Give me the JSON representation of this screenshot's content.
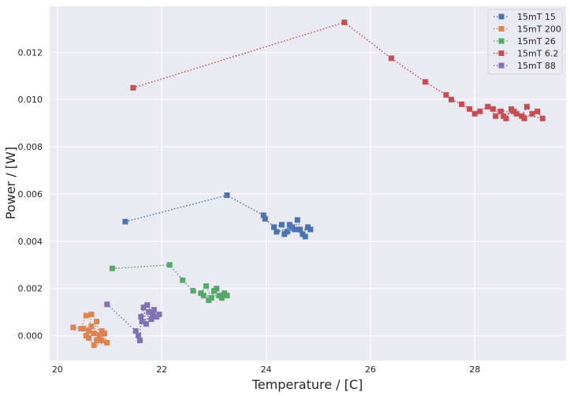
{
  "chart_data": {
    "type": "scatter",
    "xlabel": "Temperature / [C]",
    "ylabel": "Power / [W]",
    "xlim": [
      19.85,
      29.75
    ],
    "ylim": [
      -0.00105,
      0.01395
    ],
    "xticks": [
      20,
      22,
      24,
      26,
      28
    ],
    "yticks": [
      0.0,
      0.002,
      0.004,
      0.006,
      0.008,
      0.01,
      0.012
    ],
    "xtick_labels": [
      "20",
      "22",
      "24",
      "26",
      "28"
    ],
    "ytick_labels": [
      "0.000",
      "0.002",
      "0.004",
      "0.006",
      "0.008",
      "0.010",
      "0.012"
    ],
    "grid": true,
    "style": "seaborn-darkgrid",
    "marker": "square",
    "line_style": "dotted",
    "legend_position": "top-right",
    "series": [
      {
        "name": "15mT 15",
        "color": "#4c72b0",
        "points": [
          [
            21.3,
            0.00483
          ],
          [
            23.25,
            0.00595
          ],
          [
            23.95,
            0.0051
          ],
          [
            23.98,
            0.00495
          ],
          [
            24.15,
            0.0046
          ],
          [
            24.3,
            0.0047
          ],
          [
            24.4,
            0.0044
          ],
          [
            24.55,
            0.0045
          ],
          [
            24.6,
            0.0049
          ],
          [
            24.7,
            0.0043
          ],
          [
            24.8,
            0.0046
          ],
          [
            24.35,
            0.0043
          ],
          [
            24.45,
            0.0047
          ],
          [
            24.65,
            0.0045
          ],
          [
            24.75,
            0.0042
          ],
          [
            24.5,
            0.0046
          ],
          [
            24.2,
            0.0044
          ],
          [
            24.85,
            0.0045
          ]
        ]
      },
      {
        "name": "15mT 200",
        "color": "#dd8452",
        "points": [
          [
            20.3,
            0.00035
          ],
          [
            20.45,
            0.0003
          ],
          [
            20.55,
            0.00085
          ],
          [
            20.65,
            0.0009
          ],
          [
            20.6,
            0.0002
          ],
          [
            20.7,
            0.0001
          ],
          [
            20.75,
            0.0006
          ],
          [
            20.8,
            0.0
          ],
          [
            20.85,
            -0.0002
          ],
          [
            20.9,
            0.0001
          ],
          [
            20.95,
            -0.0003
          ],
          [
            20.7,
            -0.0004
          ],
          [
            20.6,
            -0.0001
          ],
          [
            20.5,
            0.0003
          ],
          [
            20.65,
            0.0004
          ],
          [
            20.75,
            -0.0002
          ],
          [
            20.85,
            0.0002
          ],
          [
            20.55,
            0.0
          ]
        ]
      },
      {
        "name": "15mT 26",
        "color": "#55a868",
        "points": [
          [
            21.05,
            0.00285
          ],
          [
            22.15,
            0.003
          ],
          [
            22.4,
            0.00235
          ],
          [
            22.6,
            0.0019
          ],
          [
            22.75,
            0.0018
          ],
          [
            22.85,
            0.0021
          ],
          [
            22.95,
            0.0016
          ],
          [
            23.05,
            0.002
          ],
          [
            23.1,
            0.0017
          ],
          [
            23.2,
            0.0018
          ],
          [
            22.9,
            0.0015
          ],
          [
            23.0,
            0.0019
          ],
          [
            23.15,
            0.0016
          ],
          [
            22.8,
            0.0017
          ],
          [
            23.25,
            0.0017
          ]
        ]
      },
      {
        "name": "15mT 6.2",
        "color": "#c44e52",
        "points": [
          [
            21.45,
            0.0105
          ],
          [
            25.5,
            0.01327
          ],
          [
            26.4,
            0.01175
          ],
          [
            27.05,
            0.01075
          ],
          [
            27.45,
            0.0102
          ],
          [
            27.55,
            0.01
          ],
          [
            27.75,
            0.0098
          ],
          [
            27.9,
            0.0096
          ],
          [
            28.0,
            0.0094
          ],
          [
            28.1,
            0.0095
          ],
          [
            28.25,
            0.0097
          ],
          [
            28.4,
            0.0093
          ],
          [
            28.5,
            0.0095
          ],
          [
            28.6,
            0.0092
          ],
          [
            28.7,
            0.0096
          ],
          [
            28.8,
            0.0094
          ],
          [
            28.9,
            0.0093
          ],
          [
            29.0,
            0.0097
          ],
          [
            29.1,
            0.0094
          ],
          [
            29.2,
            0.0095
          ],
          [
            29.3,
            0.0092
          ],
          [
            28.35,
            0.0096
          ],
          [
            28.55,
            0.0093
          ],
          [
            28.75,
            0.0095
          ],
          [
            28.95,
            0.0092
          ]
        ]
      },
      {
        "name": "15mT 88",
        "color": "#8172b3",
        "points": [
          [
            20.95,
            0.00133
          ],
          [
            21.5,
            0.0002
          ],
          [
            21.55,
            0.0
          ],
          [
            21.58,
            -0.0002
          ],
          [
            21.6,
            0.0008
          ],
          [
            21.65,
            0.0012
          ],
          [
            21.7,
            0.0005
          ],
          [
            21.75,
            0.001
          ],
          [
            21.8,
            0.0007
          ],
          [
            21.85,
            0.0011
          ],
          [
            21.9,
            0.0008
          ],
          [
            21.95,
            0.0009
          ],
          [
            21.62,
            0.0006
          ],
          [
            21.72,
            0.0013
          ],
          [
            21.82,
            0.0009
          ]
        ]
      }
    ]
  }
}
